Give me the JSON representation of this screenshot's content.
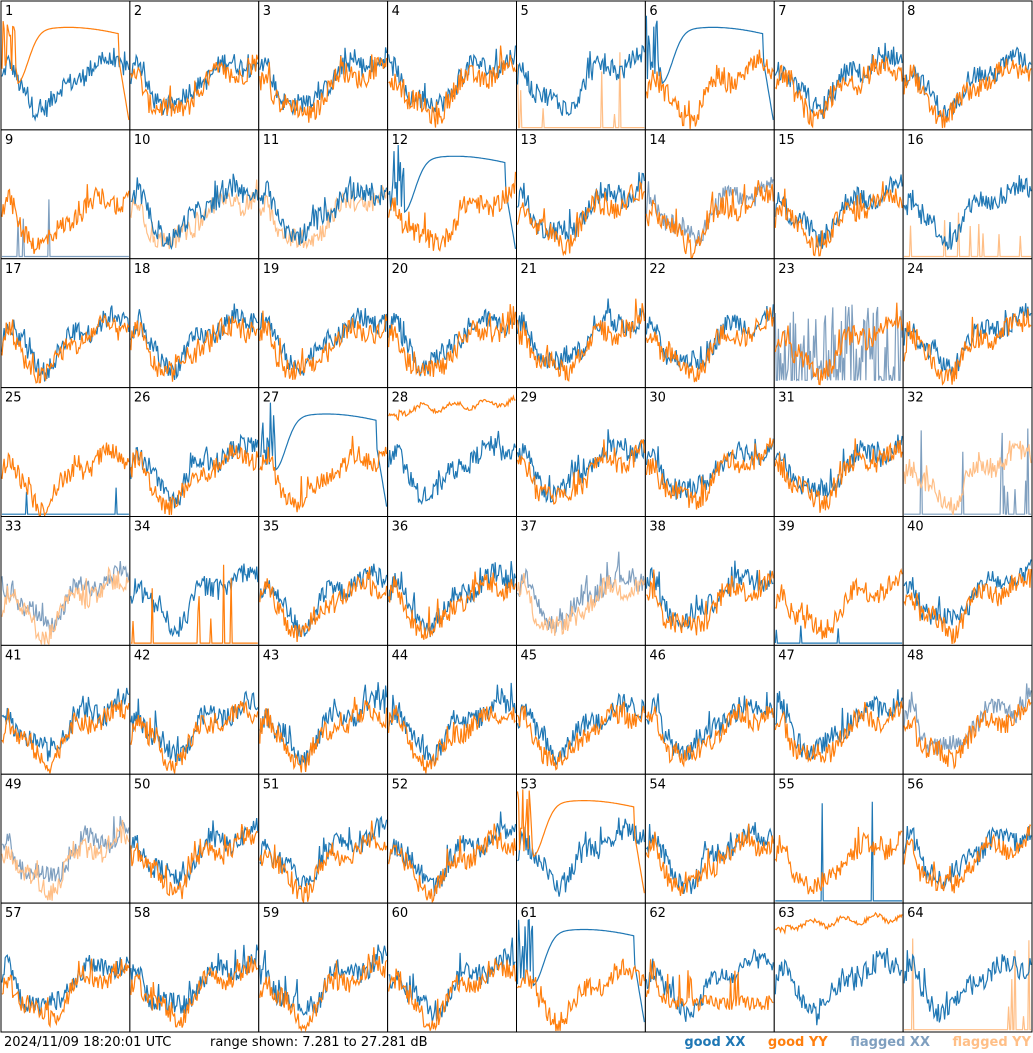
{
  "footer": {
    "timestamp": "2024/11/09 18:20:01 UTC",
    "range_text": "range shown: 7.281 to 27.281 dB"
  },
  "legend": {
    "good_xx": "good XX",
    "good_yy": "good YY",
    "flagged_xx": "flagged XX",
    "flagged_yy": "flagged YY"
  },
  "colors": {
    "good_xx": "#1f77b4",
    "good_yy": "#ff7f0e",
    "flagged_xx": "#7f9fbf",
    "flagged_yy": "#ffbf87"
  },
  "chart_data": {
    "type": "line",
    "layout": "8x8 small multiples",
    "y_range_db": [
      7.281,
      27.281
    ],
    "panels": [
      {
        "id": "1",
        "xx": "good",
        "yy": "good",
        "yy_pattern": "drop"
      },
      {
        "id": "2",
        "xx": "good",
        "yy": "good"
      },
      {
        "id": "3",
        "xx": "good",
        "yy": "good"
      },
      {
        "id": "4",
        "xx": "good",
        "yy": "good"
      },
      {
        "id": "5",
        "xx": "good",
        "yy": "flagged",
        "yy_pattern": "spikes"
      },
      {
        "id": "6",
        "xx": "good",
        "yy": "good",
        "xx_pattern": "drop"
      },
      {
        "id": "7",
        "xx": "good",
        "yy": "good"
      },
      {
        "id": "8",
        "xx": "good",
        "yy": "good"
      },
      {
        "id": "9",
        "xx": "flagged",
        "yy": "good",
        "xx_pattern": "spikes"
      },
      {
        "id": "10",
        "xx": "good",
        "yy": "flagged"
      },
      {
        "id": "11",
        "xx": "good",
        "yy": "flagged"
      },
      {
        "id": "12",
        "xx": "good",
        "yy": "good",
        "xx_pattern": "drop"
      },
      {
        "id": "13",
        "xx": "good",
        "yy": "good"
      },
      {
        "id": "14",
        "xx": "flagged",
        "yy": "good"
      },
      {
        "id": "15",
        "xx": "good",
        "yy": "good"
      },
      {
        "id": "16",
        "xx": "good",
        "yy": "flagged",
        "yy_pattern": "spikes"
      },
      {
        "id": "17",
        "xx": "good",
        "yy": "good"
      },
      {
        "id": "18",
        "xx": "good",
        "yy": "good"
      },
      {
        "id": "19",
        "xx": "good",
        "yy": "good"
      },
      {
        "id": "20",
        "xx": "good",
        "yy": "good"
      },
      {
        "id": "21",
        "xx": "good",
        "yy": "good"
      },
      {
        "id": "22",
        "xx": "good",
        "yy": "good"
      },
      {
        "id": "23",
        "xx": "flagged",
        "yy": "good",
        "xx_pattern": "noisy"
      },
      {
        "id": "24",
        "xx": "good",
        "yy": "good"
      },
      {
        "id": "25",
        "xx": "good",
        "yy": "good",
        "xx_pattern": "spikes"
      },
      {
        "id": "26",
        "xx": "good",
        "yy": "good"
      },
      {
        "id": "27",
        "xx": "good",
        "yy": "good",
        "xx_pattern": "drop"
      },
      {
        "id": "28",
        "xx": "good",
        "yy": "good",
        "yy_pattern": "flat"
      },
      {
        "id": "29",
        "xx": "good",
        "yy": "good"
      },
      {
        "id": "30",
        "xx": "good",
        "yy": "good"
      },
      {
        "id": "31",
        "xx": "good",
        "yy": "good"
      },
      {
        "id": "32",
        "xx": "flagged",
        "yy": "flagged",
        "xx_pattern": "spikes"
      },
      {
        "id": "33",
        "xx": "flagged",
        "yy": "flagged"
      },
      {
        "id": "34",
        "xx": "good",
        "yy": "good",
        "yy_pattern": "spikes"
      },
      {
        "id": "35",
        "xx": "good",
        "yy": "good"
      },
      {
        "id": "36",
        "xx": "good",
        "yy": "good"
      },
      {
        "id": "37",
        "xx": "flagged",
        "yy": "flagged"
      },
      {
        "id": "38",
        "xx": "good",
        "yy": "good"
      },
      {
        "id": "39",
        "xx": "good",
        "yy": "good",
        "xx_pattern": "spikes"
      },
      {
        "id": "40",
        "xx": "good",
        "yy": "good"
      },
      {
        "id": "41",
        "xx": "good",
        "yy": "good"
      },
      {
        "id": "42",
        "xx": "good",
        "yy": "good"
      },
      {
        "id": "43",
        "xx": "good",
        "yy": "good"
      },
      {
        "id": "44",
        "xx": "good",
        "yy": "good"
      },
      {
        "id": "45",
        "xx": "good",
        "yy": "good"
      },
      {
        "id": "46",
        "xx": "good",
        "yy": "good"
      },
      {
        "id": "47",
        "xx": "good",
        "yy": "good"
      },
      {
        "id": "48",
        "xx": "flagged",
        "yy": "good"
      },
      {
        "id": "49",
        "xx": "flagged",
        "yy": "flagged"
      },
      {
        "id": "50",
        "xx": "good",
        "yy": "good"
      },
      {
        "id": "51",
        "xx": "good",
        "yy": "good"
      },
      {
        "id": "52",
        "xx": "good",
        "yy": "good"
      },
      {
        "id": "53",
        "xx": "good",
        "yy": "good",
        "yy_pattern": "drop"
      },
      {
        "id": "54",
        "xx": "good",
        "yy": "good"
      },
      {
        "id": "55",
        "xx": "good",
        "yy": "good",
        "xx_pattern": "spikes"
      },
      {
        "id": "56",
        "xx": "good",
        "yy": "good"
      },
      {
        "id": "57",
        "xx": "good",
        "yy": "good"
      },
      {
        "id": "58",
        "xx": "good",
        "yy": "good"
      },
      {
        "id": "59",
        "xx": "good",
        "yy": "good"
      },
      {
        "id": "60",
        "xx": "good",
        "yy": "good"
      },
      {
        "id": "61",
        "xx": "good",
        "yy": "good",
        "xx_pattern": "drop"
      },
      {
        "id": "62",
        "xx": "good",
        "yy": "good",
        "yy_pattern": "low"
      },
      {
        "id": "63",
        "xx": "good",
        "yy": "good",
        "yy_pattern": "flat"
      },
      {
        "id": "64",
        "xx": "good",
        "yy": "flagged",
        "yy_pattern": "spikes"
      }
    ]
  }
}
